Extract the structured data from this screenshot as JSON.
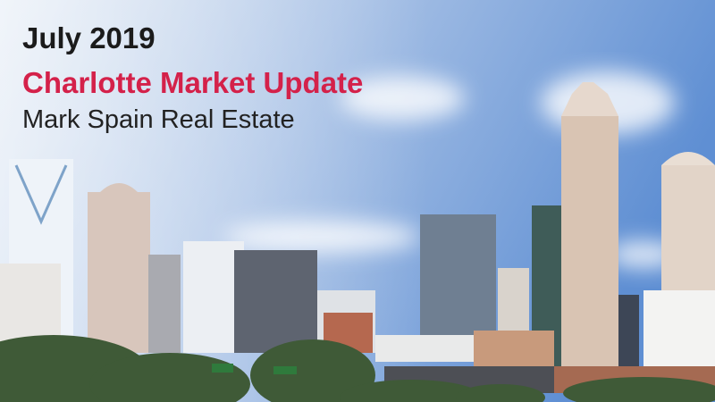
{
  "header": {
    "date": "July 2019",
    "title": "Charlotte Market Update",
    "subtitle": "Mark Spain Real Estate"
  }
}
